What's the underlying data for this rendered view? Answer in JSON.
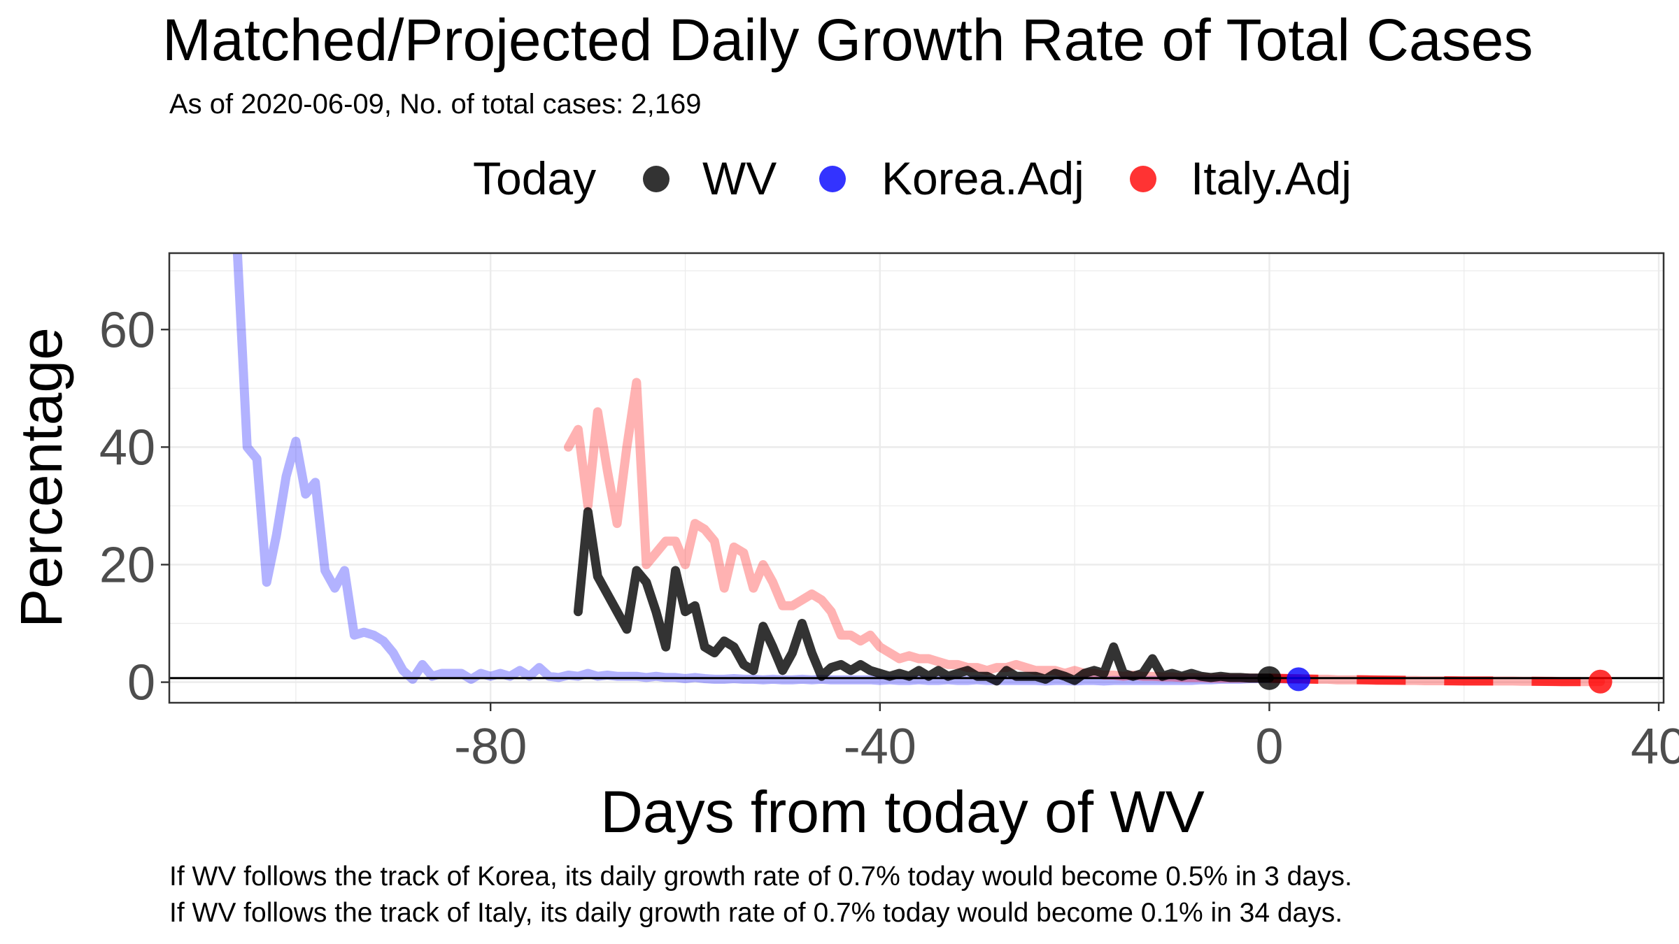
{
  "chart_data": {
    "type": "line",
    "title": "Matched/Projected Daily Growth Rate of Total Cases",
    "subtitle": "As of 2020-06-09, No. of total cases: 2,169",
    "xlabel": "Days from today of WV",
    "ylabel": "Percentage",
    "xlim": [
      -113,
      40.5
    ],
    "ylim": [
      -3.5,
      73
    ],
    "x_ticks": [
      -80,
      -40,
      0,
      40
    ],
    "y_ticks": [
      0,
      20,
      40,
      60
    ],
    "grid": true,
    "legend": {
      "title": "Today",
      "position": "top",
      "items": [
        {
          "label": "WV",
          "color": "#000000"
        },
        {
          "label": "Korea.Adj",
          "color": "#0000ff"
        },
        {
          "label": "Italy.Adj",
          "color": "#ff0000"
        }
      ]
    },
    "reference_line_y": 0.7,
    "series": [
      {
        "name": "Korea.Adj",
        "color": "#0000ff",
        "alpha": 0.3,
        "points": [
          [
            -106,
            73
          ],
          [
            -105,
            40
          ],
          [
            -104,
            38
          ],
          [
            -103,
            17
          ],
          [
            -102,
            25
          ],
          [
            -101,
            35
          ],
          [
            -100,
            41
          ],
          [
            -99,
            32
          ],
          [
            -98,
            34
          ],
          [
            -97,
            19
          ],
          [
            -96,
            16
          ],
          [
            -95,
            19
          ],
          [
            -94,
            8
          ],
          [
            -93,
            8.5
          ],
          [
            -92,
            8
          ],
          [
            -91,
            7
          ],
          [
            -90,
            5
          ],
          [
            -89,
            2
          ],
          [
            -88,
            0.5
          ],
          [
            -87,
            3
          ],
          [
            -86,
            1
          ],
          [
            -85,
            1.5
          ],
          [
            -84,
            1.5
          ],
          [
            -83,
            1.5
          ],
          [
            -82,
            0.5
          ],
          [
            -81,
            1.5
          ],
          [
            -80,
            1
          ],
          [
            -79,
            1.5
          ],
          [
            -78,
            1
          ],
          [
            -77,
            2
          ],
          [
            -76,
            1
          ],
          [
            -75,
            2.5
          ],
          [
            -74,
            1
          ],
          [
            -73,
            0.8
          ],
          [
            -72,
            1.2
          ],
          [
            -71,
            1
          ],
          [
            -70,
            1.5
          ],
          [
            -69,
            1
          ],
          [
            -68,
            1.2
          ],
          [
            -67,
            1
          ],
          [
            -66,
            1
          ],
          [
            -65,
            1
          ],
          [
            -64,
            0.8
          ],
          [
            -63,
            1
          ],
          [
            -62,
            0.8
          ],
          [
            -61,
            0.8
          ],
          [
            -60,
            0.6
          ],
          [
            -59,
            0.8
          ],
          [
            -58,
            0.6
          ],
          [
            -57,
            0.5
          ],
          [
            -56,
            0.5
          ],
          [
            -55,
            0.6
          ],
          [
            -54,
            0.5
          ],
          [
            -53,
            0.5
          ],
          [
            -52,
            0.4
          ],
          [
            -51,
            0.5
          ],
          [
            -50,
            0.4
          ],
          [
            -49,
            0.4
          ],
          [
            -48,
            0.5
          ],
          [
            -47,
            0.4
          ],
          [
            -46,
            0.5
          ],
          [
            -45,
            0.4
          ],
          [
            -44,
            0.4
          ],
          [
            -43,
            0.4
          ],
          [
            -42,
            0.4
          ],
          [
            -41,
            0.4
          ],
          [
            -40,
            0.3
          ],
          [
            -39,
            0.4
          ],
          [
            -38,
            0.3
          ],
          [
            -37,
            0.3
          ],
          [
            -36,
            0.4
          ],
          [
            -35,
            0.3
          ],
          [
            -34,
            0.3
          ],
          [
            -33,
            0.4
          ],
          [
            -32,
            0.3
          ],
          [
            -31,
            0.3
          ],
          [
            -30,
            0.4
          ],
          [
            -29,
            0.3
          ],
          [
            -28,
            0.3
          ],
          [
            -27,
            0.3
          ],
          [
            -26,
            0.3
          ],
          [
            -25,
            0.3
          ],
          [
            -24,
            0.3
          ],
          [
            -23,
            0.2
          ],
          [
            -22,
            0.3
          ],
          [
            -21,
            0.3
          ],
          [
            -20,
            0.2
          ],
          [
            -19,
            0.3
          ],
          [
            -18,
            0.3
          ],
          [
            -17,
            0.2
          ],
          [
            -16,
            0.3
          ],
          [
            -15,
            0.3
          ],
          [
            -14,
            0.3
          ],
          [
            -13,
            0.3
          ],
          [
            -12,
            0.3
          ],
          [
            -11,
            0.3
          ],
          [
            -10,
            0.3
          ],
          [
            -9,
            0.3
          ],
          [
            -8,
            0.3
          ],
          [
            -7,
            0.4
          ],
          [
            -6,
            0.4
          ],
          [
            -5,
            0.5
          ],
          [
            -4,
            0.5
          ],
          [
            -3,
            0.5
          ],
          [
            -2,
            0.6
          ],
          [
            -1,
            0.6
          ],
          [
            0,
            0.6
          ],
          [
            1,
            0.6
          ],
          [
            2,
            0.5
          ],
          [
            3,
            0.5
          ]
        ]
      },
      {
        "name": "Italy.Adj",
        "color": "#ff0000",
        "alpha": 0.3,
        "points": [
          [
            -72,
            40
          ],
          [
            -71,
            43
          ],
          [
            -70,
            30
          ],
          [
            -69,
            46
          ],
          [
            -68,
            36
          ],
          [
            -67,
            27
          ],
          [
            -66,
            40
          ],
          [
            -65,
            51
          ],
          [
            -64,
            20
          ],
          [
            -63,
            22
          ],
          [
            -62,
            24
          ],
          [
            -61,
            24
          ],
          [
            -60,
            20
          ],
          [
            -59,
            27
          ],
          [
            -58,
            26
          ],
          [
            -57,
            24
          ],
          [
            -56,
            16
          ],
          [
            -55,
            23
          ],
          [
            -54,
            22
          ],
          [
            -53,
            16
          ],
          [
            -52,
            20
          ],
          [
            -51,
            17
          ],
          [
            -50,
            13
          ],
          [
            -49,
            13
          ],
          [
            -48,
            14
          ],
          [
            -47,
            15
          ],
          [
            -46,
            14
          ],
          [
            -45,
            12
          ],
          [
            -44,
            8
          ],
          [
            -43,
            8
          ],
          [
            -42,
            7
          ],
          [
            -41,
            8
          ],
          [
            -40,
            6
          ],
          [
            -39,
            5
          ],
          [
            -38,
            4
          ],
          [
            -37,
            4.5
          ],
          [
            -36,
            4
          ],
          [
            -35,
            4
          ],
          [
            -34,
            3.5
          ],
          [
            -33,
            3
          ],
          [
            -32,
            3
          ],
          [
            -31,
            2.5
          ],
          [
            -30,
            2.5
          ],
          [
            -29,
            2
          ],
          [
            -28,
            2.5
          ],
          [
            -27,
            2.5
          ],
          [
            -26,
            3
          ],
          [
            -25,
            2.5
          ],
          [
            -24,
            2
          ],
          [
            -23,
            2
          ],
          [
            -22,
            2
          ],
          [
            -21,
            1.5
          ],
          [
            -20,
            2
          ],
          [
            -19,
            1.5
          ],
          [
            -18,
            1.5
          ],
          [
            -17,
            1.2
          ],
          [
            -16,
            1.2
          ],
          [
            -15,
            1
          ],
          [
            -14,
            1.2
          ],
          [
            -13,
            1
          ],
          [
            -12,
            1
          ],
          [
            -11,
            0.9
          ],
          [
            -10,
            0.9
          ],
          [
            -9,
            0.8
          ],
          [
            -8,
            0.8
          ],
          [
            -7,
            0.8
          ],
          [
            -6,
            0.7
          ],
          [
            -5,
            0.7
          ],
          [
            -4,
            0.7
          ],
          [
            -3,
            0.7
          ],
          [
            -2,
            0.7
          ],
          [
            -1,
            0.7
          ],
          [
            0,
            0.7
          ],
          [
            1,
            0.6
          ],
          [
            2,
            0.6
          ],
          [
            3,
            0.6
          ],
          [
            4,
            0.5
          ],
          [
            5,
            0.5
          ],
          [
            6,
            0.5
          ],
          [
            7,
            0.4
          ],
          [
            8,
            0.4
          ],
          [
            9,
            0.4
          ],
          [
            10,
            0.4
          ],
          [
            11,
            0.3
          ],
          [
            12,
            0.3
          ],
          [
            13,
            0.3
          ],
          [
            14,
            0.3
          ],
          [
            15,
            0.3
          ],
          [
            16,
            0.25
          ],
          [
            17,
            0.25
          ],
          [
            18,
            0.25
          ],
          [
            19,
            0.25
          ],
          [
            20,
            0.2
          ],
          [
            21,
            0.2
          ],
          [
            22,
            0.2
          ],
          [
            23,
            0.2
          ],
          [
            24,
            0.2
          ],
          [
            25,
            0.2
          ],
          [
            26,
            0.15
          ],
          [
            27,
            0.15
          ],
          [
            28,
            0.15
          ],
          [
            29,
            0.15
          ],
          [
            30,
            0.1
          ],
          [
            31,
            0.1
          ],
          [
            32,
            0.1
          ],
          [
            33,
            0.1
          ],
          [
            34,
            0.1
          ]
        ]
      },
      {
        "name": "Italy.Adj projected",
        "color": "#ff0000",
        "alpha": 0.75,
        "dashed": true,
        "points": [
          [
            0,
            0.7
          ],
          [
            5,
            0.5
          ],
          [
            10,
            0.4
          ],
          [
            15,
            0.3
          ],
          [
            20,
            0.2
          ],
          [
            25,
            0.2
          ],
          [
            30,
            0.1
          ],
          [
            34,
            0.1
          ]
        ]
      },
      {
        "name": "WV",
        "color": "#000000",
        "alpha": 0.8,
        "points": [
          [
            -71,
            12
          ],
          [
            -70,
            29
          ],
          [
            -69,
            18
          ],
          [
            -68,
            15
          ],
          [
            -67,
            12
          ],
          [
            -66,
            9
          ],
          [
            -65,
            19
          ],
          [
            -64,
            17
          ],
          [
            -63,
            12
          ],
          [
            -62,
            6
          ],
          [
            -61,
            19
          ],
          [
            -60,
            12
          ],
          [
            -59,
            13
          ],
          [
            -58,
            6
          ],
          [
            -57,
            5
          ],
          [
            -56,
            7
          ],
          [
            -55,
            6
          ],
          [
            -54,
            3
          ],
          [
            -53,
            2
          ],
          [
            -52,
            9.5
          ],
          [
            -51,
            6
          ],
          [
            -50,
            2
          ],
          [
            -49,
            5
          ],
          [
            -48,
            10
          ],
          [
            -47,
            5
          ],
          [
            -46,
            1
          ],
          [
            -45,
            2.5
          ],
          [
            -44,
            3
          ],
          [
            -43,
            2
          ],
          [
            -42,
            3
          ],
          [
            -41,
            2
          ],
          [
            -40,
            1.5
          ],
          [
            -39,
            1
          ],
          [
            -38,
            1.5
          ],
          [
            -37,
            1
          ],
          [
            -36,
            2
          ],
          [
            -35,
            1
          ],
          [
            -34,
            2
          ],
          [
            -33,
            1
          ],
          [
            -32,
            1.5
          ],
          [
            -31,
            2
          ],
          [
            -30,
            1
          ],
          [
            -29,
            1
          ],
          [
            -28,
            0.2
          ],
          [
            -27,
            2
          ],
          [
            -26,
            1
          ],
          [
            -25,
            1
          ],
          [
            -24,
            1
          ],
          [
            -23,
            0.5
          ],
          [
            -22,
            1.5
          ],
          [
            -21,
            1
          ],
          [
            -20,
            0.3
          ],
          [
            -19,
            1.5
          ],
          [
            -18,
            2
          ],
          [
            -17,
            1.5
          ],
          [
            -16,
            6
          ],
          [
            -15,
            1.5
          ],
          [
            -14,
            1
          ],
          [
            -13,
            1.5
          ],
          [
            -12,
            4
          ],
          [
            -11,
            1
          ],
          [
            -10,
            1.5
          ],
          [
            -9,
            1
          ],
          [
            -8,
            1.5
          ],
          [
            -7,
            1
          ],
          [
            -6,
            0.8
          ],
          [
            -5,
            1
          ],
          [
            -4,
            0.8
          ],
          [
            -3,
            0.8
          ],
          [
            -2,
            0.7
          ],
          [
            -1,
            0.7
          ],
          [
            0,
            0.7
          ]
        ]
      }
    ],
    "today_points": [
      {
        "name": "WV",
        "x": 0,
        "y": 0.7,
        "color": "#000000"
      },
      {
        "name": "Korea.Adj",
        "x": 3,
        "y": 0.5,
        "color": "#0000ff"
      },
      {
        "name": "Italy.Adj",
        "x": 34,
        "y": 0.1,
        "color": "#ff0000"
      }
    ]
  },
  "caption": {
    "line1": "If WV follows the track of Korea, its daily growth rate of 0.7% today would become 0.5% in 3 days.",
    "line2": "If WV follows the track of Italy, its daily growth rate of 0.7% today would become 0.1% in 34 days."
  }
}
